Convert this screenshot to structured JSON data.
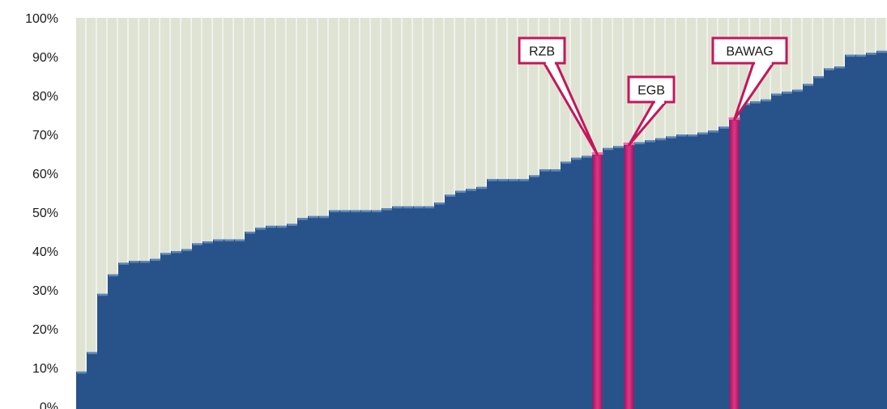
{
  "chart_data": {
    "type": "bar",
    "subtype": "sorted-column",
    "ylim": [
      0,
      100
    ],
    "y_ticks": [
      "0%",
      "10%",
      "20%",
      "30%",
      "40%",
      "50%",
      "60%",
      "70%",
      "80%",
      "90%",
      "100%"
    ],
    "grid": "vertical",
    "colors": {
      "plot_background": "#dfe3d4",
      "bar": "#27538a",
      "bar_top": "#5d86b8",
      "highlight": "#cc1a73",
      "callout_border": "#c2185b",
      "grid": "#ffffff"
    },
    "values": [
      9,
      14,
      29,
      34,
      37,
      37.5,
      37.5,
      38,
      39.5,
      40,
      40.5,
      42,
      42.5,
      43,
      43,
      43,
      45,
      46,
      46.5,
      46.5,
      47,
      48.5,
      49,
      49,
      50.5,
      50.5,
      50.5,
      50.5,
      50.5,
      51,
      51.5,
      51.5,
      51.5,
      51.5,
      52.5,
      54.5,
      55.5,
      56,
      56.5,
      58.5,
      58.5,
      58.5,
      58.5,
      59.5,
      61,
      61,
      63,
      64,
      64.5,
      65,
      66.5,
      67,
      67.5,
      68,
      68.5,
      69,
      69.5,
      70,
      70,
      70.5,
      71,
      72,
      74,
      78,
      78.5,
      79,
      80.5,
      81,
      81.5,
      83,
      85,
      87,
      87.5,
      90.5,
      90.5,
      91,
      91.5
    ],
    "highlights": [
      {
        "label": "RZB",
        "index": 49
      },
      {
        "label": "EGB",
        "index": 52
      },
      {
        "label": "BAWAG",
        "index": 62
      }
    ]
  }
}
